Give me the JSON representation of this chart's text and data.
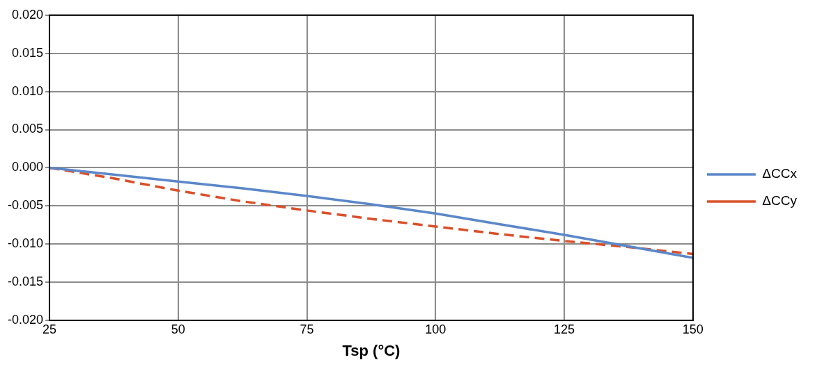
{
  "chart_data": {
    "type": "line",
    "xlabel": "Tsp (°C)",
    "xlim": [
      25,
      150
    ],
    "xticks": [
      25,
      50,
      75,
      100,
      125,
      150
    ],
    "ylim": [
      -0.02,
      0.02
    ],
    "yticks": [
      {
        "value": -0.02,
        "label": "-0.020"
      },
      {
        "value": -0.015,
        "label": "-0.015"
      },
      {
        "value": -0.01,
        "label": "-0.010"
      },
      {
        "value": -0.005,
        "label": "-0.005"
      },
      {
        "value": 0,
        "label": "0.000"
      },
      {
        "value": 0.005,
        "label": "0.005"
      },
      {
        "value": 0.01,
        "label": "0.010"
      },
      {
        "value": 0.015,
        "label": "0.015"
      },
      {
        "value": 0.02,
        "label": "0.020"
      }
    ],
    "grid": true,
    "legend": "right",
    "marker": "none",
    "series": [
      {
        "name": "ΔCCx",
        "color": "#5b87c9",
        "line_style": "solid",
        "x": [
          25,
          37.5,
          50,
          62.5,
          75,
          87.5,
          100,
          112.5,
          125,
          137.5,
          150
        ],
        "values": [
          0,
          -0.0009,
          -0.0018,
          -0.0027,
          -0.0037,
          -0.0048,
          -0.006,
          -0.0074,
          -0.0088,
          -0.0103,
          -0.0118
        ]
      },
      {
        "name": "ΔCCy",
        "color": "#d9502a",
        "line_style": "dashed",
        "x": [
          25,
          37.5,
          50,
          62.5,
          75,
          87.5,
          100,
          112.5,
          125,
          137.5,
          150
        ],
        "values": [
          0,
          -0.0014,
          -0.003,
          -0.0044,
          -0.0056,
          -0.0067,
          -0.0077,
          -0.0087,
          -0.0096,
          -0.0104,
          -0.0113
        ]
      }
    ]
  }
}
